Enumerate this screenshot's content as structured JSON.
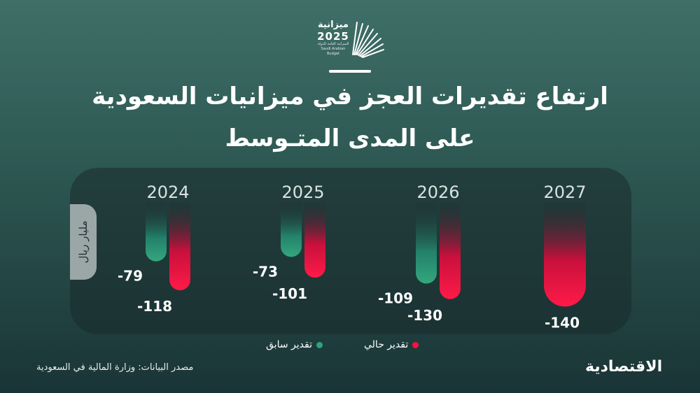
{
  "logo": {
    "word": "ميزانية",
    "year": "2025",
    "sub_ar": "الميزانية العامة للدولة",
    "sub_en": "Saudi Arabian Budget"
  },
  "title_line1": "ارتفاع تقديرات العجز في ميزانيات السعودية",
  "title_line2": "على المدى المتـوسط",
  "unit": "مليار ريال",
  "legend": {
    "current": "تقدير حالي",
    "previous": "تقدير سابق"
  },
  "source": "مصدر البيانات: وزارة المالية في السعودية",
  "brand": "الاقتصادية",
  "colors": {
    "current": "#ff1040",
    "previous": "#2fa37a",
    "background": "#2c5651"
  },
  "chart_data": {
    "type": "bar",
    "categories": [
      "2024",
      "2025",
      "2026",
      "2027"
    ],
    "series": [
      {
        "name": "تقدير سابق",
        "values": [
          -79,
          -73,
          -109,
          null
        ]
      },
      {
        "name": "تقدير حالي",
        "values": [
          -118,
          -101,
          -130,
          -140
        ]
      }
    ],
    "value_labels": {
      "previous": [
        "-79",
        "-73",
        "-109",
        ""
      ],
      "current": [
        "-118",
        "-101",
        "-130",
        "-140"
      ]
    },
    "ylim": [
      -140,
      0
    ],
    "xlabel": "",
    "ylabel": "مليار ريال",
    "grid": false,
    "legend_position": "bottom"
  }
}
